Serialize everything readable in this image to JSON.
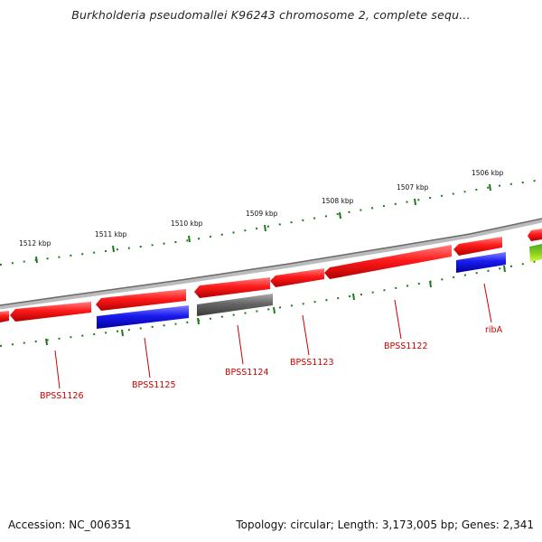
{
  "title": "Burkholderia pseudomallei K96243 chromosome 2, complete sequ...",
  "footer": {
    "accession": "Accession: NC_006351",
    "summary": "Topology: circular; Length: 3,173,005 bp; Genes: 2,341"
  },
  "ruler": {
    "ticks": [
      {
        "label": "1512 kbp"
      },
      {
        "label": "1511 kbp"
      },
      {
        "label": "1510 kbp"
      },
      {
        "label": "1509 kbp"
      },
      {
        "label": "1508 kbp"
      },
      {
        "label": "1507 kbp"
      },
      {
        "label": "1506 kbp"
      }
    ]
  },
  "genes": [
    {
      "name": "BPSS1126"
    },
    {
      "name": "BPSS1125"
    },
    {
      "name": "BPSS1124"
    },
    {
      "name": "BPSS1123"
    },
    {
      "name": "BPSS1122"
    },
    {
      "name": "ribA"
    }
  ],
  "colors": {
    "gene_red": "#ee1111",
    "gene_blue": "#1a1aee",
    "gene_gray": "#666666",
    "backbone": "#8a8a8a",
    "ticks": "#1a7a1a",
    "label_red": "#cc0000"
  }
}
